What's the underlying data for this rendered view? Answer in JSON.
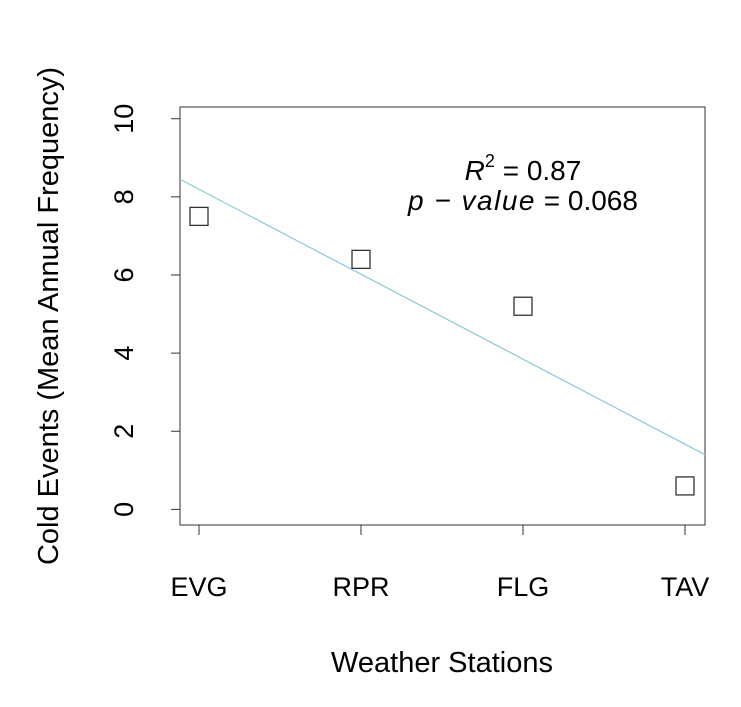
{
  "chart_data": {
    "type": "scatter",
    "title": "",
    "xlabel": "Weather Stations",
    "ylabel": "Cold Events (Mean Annual Frequency)",
    "categories": [
      "EVG",
      "RPR",
      "FLG",
      "TAV"
    ],
    "y_ticks": [
      "0",
      "2",
      "4",
      "6",
      "8",
      "10"
    ],
    "ylim": [
      -0.4,
      10.3
    ],
    "grid": false,
    "legend": "none",
    "series": [
      {
        "values": [
          7.5,
          6.4,
          5.2,
          0.6
        ]
      }
    ],
    "trendline": {
      "start": 8.45,
      "end": 1.4
    },
    "annotations": {
      "r2_symbol": "R",
      "r2_exponent": "2",
      "r2_value": " = 0.87",
      "p_label": "p − value",
      "p_value": " = 0.068"
    },
    "colors": {
      "trendline": "#8fc8da",
      "points": "#333333",
      "axes": "#333333"
    }
  }
}
